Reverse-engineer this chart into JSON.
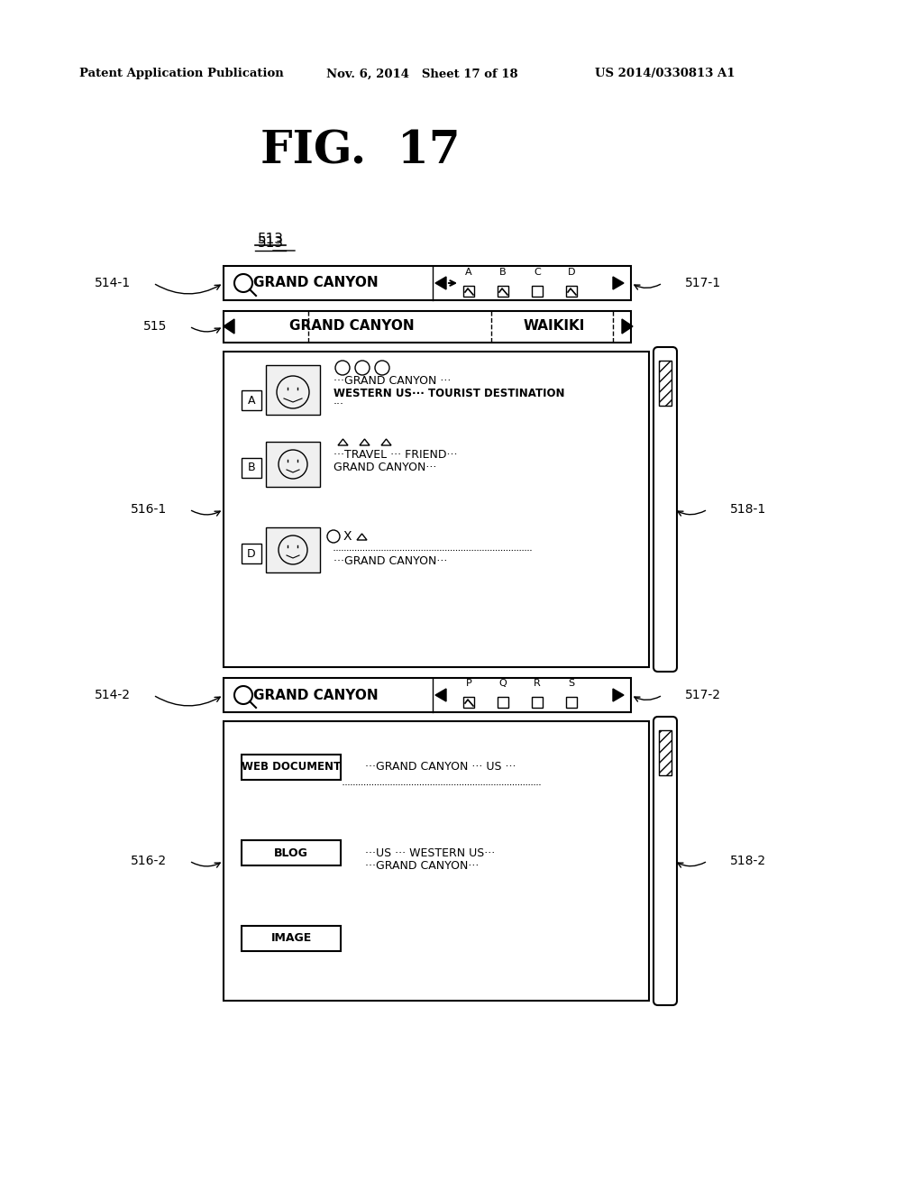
{
  "title": "FIG.  17",
  "header_left": "Patent Application Publication",
  "header_mid": "Nov. 6, 2014   Sheet 17 of 18",
  "header_right": "US 2014/0330813 A1",
  "bg_color": "#ffffff",
  "label_513": "513",
  "label_514_1": "514-1",
  "label_514_2": "514-2",
  "label_515": "515",
  "label_516_1": "516-1",
  "label_516_2": "516-2",
  "label_517_1": "517-1",
  "label_517_2": "517-2",
  "label_518_1": "518-1",
  "label_518_2": "518-2"
}
